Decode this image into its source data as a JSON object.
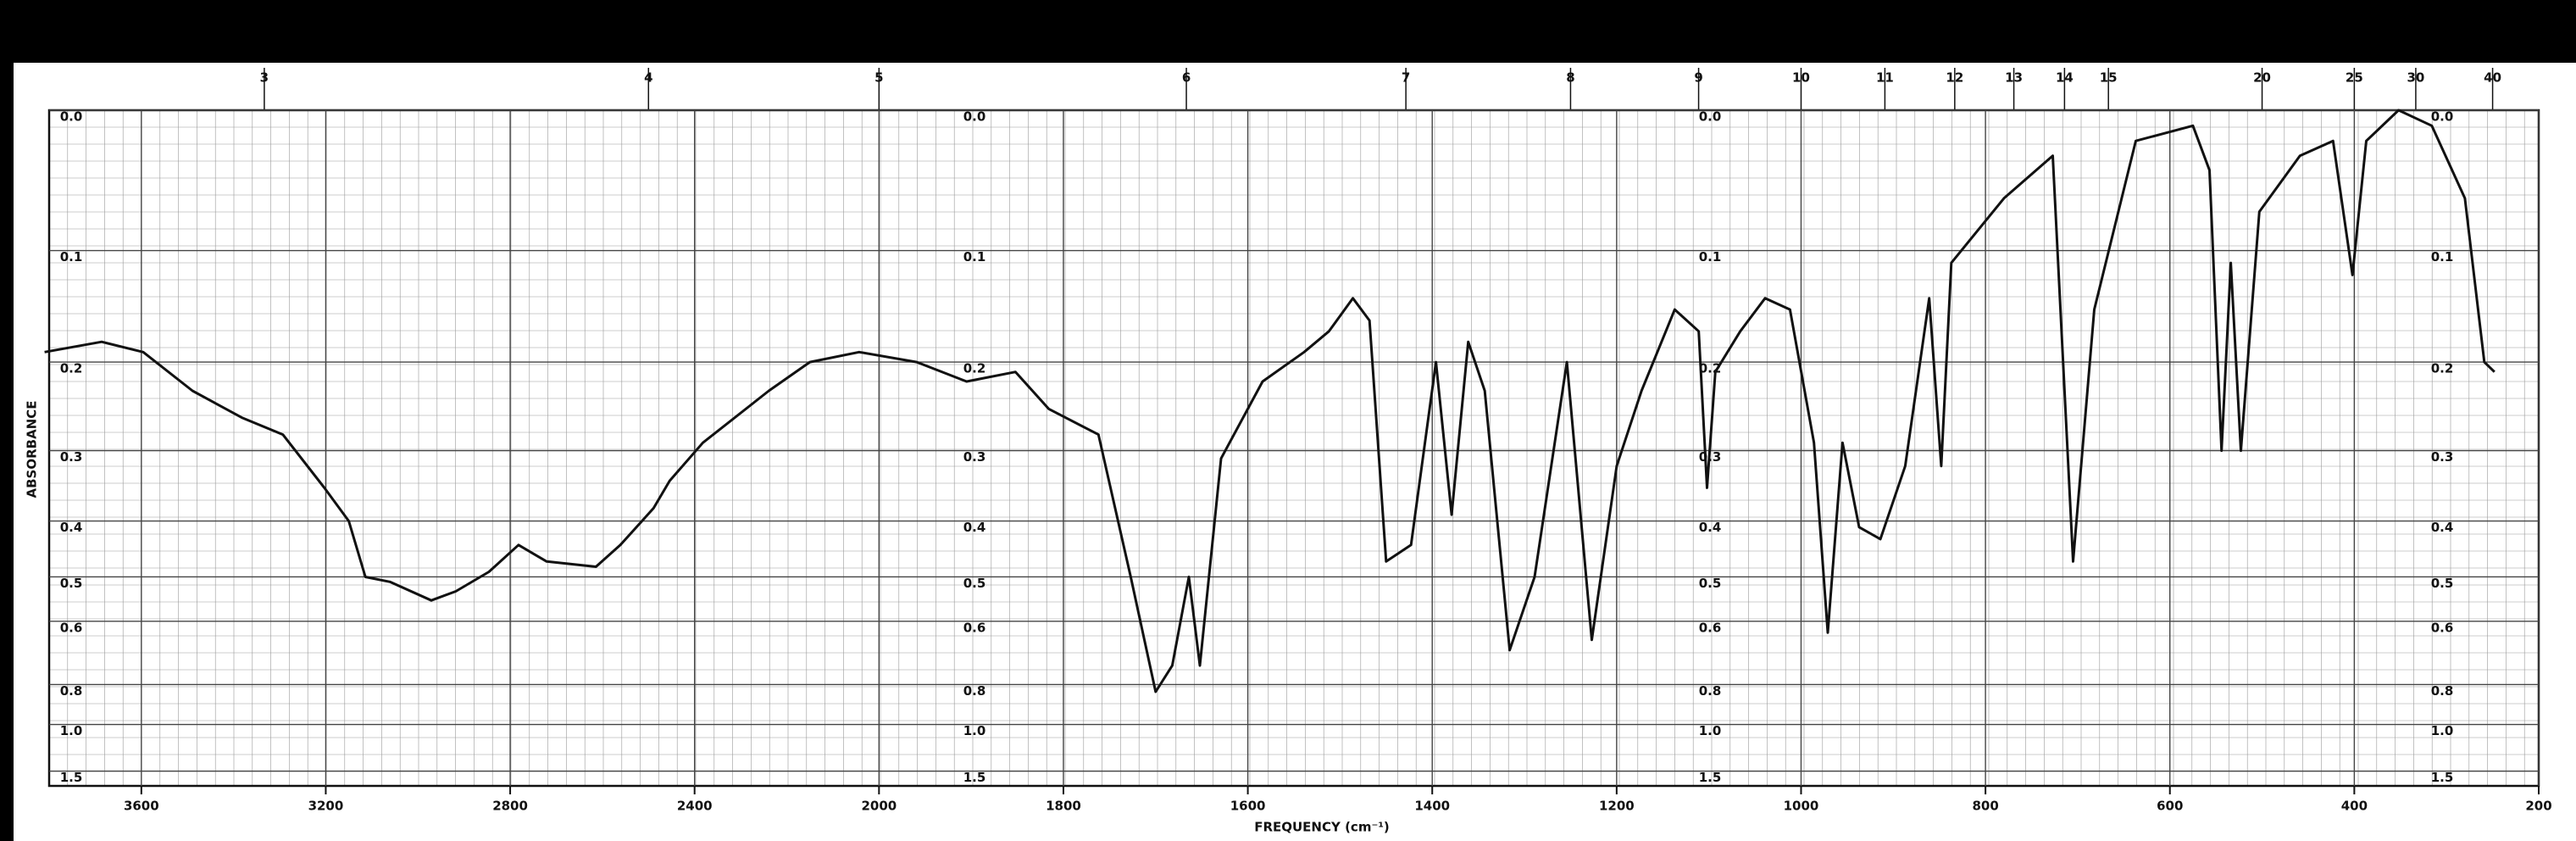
{
  "chart_data": {
    "type": "line",
    "x_label": "FREQUENCY (cm⁻¹)",
    "y_label": "ABSORBANCE",
    "y_scale": "absorbance",
    "xlim": [
      3800,
      200
    ],
    "xticks": [
      3600,
      3200,
      2800,
      2400,
      2000,
      1800,
      1600,
      1400,
      1200,
      1000,
      800,
      600,
      400,
      200
    ],
    "x2ticks": [
      3,
      4,
      5,
      6,
      7,
      8,
      9,
      10,
      11,
      12,
      13,
      14,
      15,
      20,
      25,
      30,
      40
    ],
    "ylim": [
      0,
      2
    ],
    "yticks": [
      {
        "value": 0,
        "label": "0.0"
      },
      0.1,
      0.2,
      0.3,
      0.4,
      0.5,
      0.6,
      0.8,
      {
        "value": 1,
        "label": "1.0"
      },
      1.5
    ],
    "grid": true,
    "series": [
      {
        "color": "#111111",
        "x": [
          3810,
          3686,
          3596,
          3489,
          3382,
          3293,
          3203,
          3150,
          3114,
          3061,
          2971,
          2918,
          2846,
          2782,
          2721,
          2614,
          2561,
          2489,
          2454,
          2382,
          2239,
          2150,
          2043,
          1959,
          1905,
          1852,
          1816,
          1762,
          1727,
          1700,
          1682,
          1664,
          1652,
          1629,
          1584,
          1539,
          1512,
          1486,
          1468,
          1450,
          1423,
          1396,
          1379,
          1361,
          1343,
          1316,
          1289,
          1254,
          1227,
          1200,
          1173,
          1137,
          1111,
          1102,
          1093,
          1066,
          1039,
          1012,
          986,
          971,
          955,
          937,
          914,
          887,
          861,
          848,
          837,
          780,
          727,
          705,
          682,
          637,
          575,
          557,
          544,
          534,
          523,
          503,
          459,
          423,
          402,
          387,
          352,
          316,
          280,
          259,
          248
        ],
        "values": [
          0.19,
          0.18,
          0.19,
          0.23,
          0.26,
          0.28,
          0.35,
          0.4,
          0.5,
          0.51,
          0.55,
          0.53,
          0.49,
          0.44,
          0.47,
          0.48,
          0.44,
          0.38,
          0.34,
          0.29,
          0.23,
          0.2,
          0.19,
          0.2,
          0.22,
          0.21,
          0.25,
          0.28,
          0.5,
          0.83,
          0.73,
          0.5,
          0.73,
          0.31,
          0.22,
          0.19,
          0.17,
          0.14,
          0.16,
          0.47,
          0.44,
          0.2,
          0.39,
          0.18,
          0.23,
          0.68,
          0.5,
          0.2,
          0.65,
          0.32,
          0.23,
          0.15,
          0.17,
          0.35,
          0.21,
          0.17,
          0.14,
          0.15,
          0.29,
          0.63,
          0.29,
          0.41,
          0.43,
          0.32,
          0.14,
          0.32,
          0.11,
          0.06,
          0.03,
          0.47,
          0.15,
          0.02,
          0.01,
          0.04,
          0.3,
          0.11,
          0.3,
          0.07,
          0.03,
          0.02,
          0.12,
          0.02,
          0,
          0.01,
          0.06,
          0.2,
          0.21
        ]
      }
    ]
  }
}
